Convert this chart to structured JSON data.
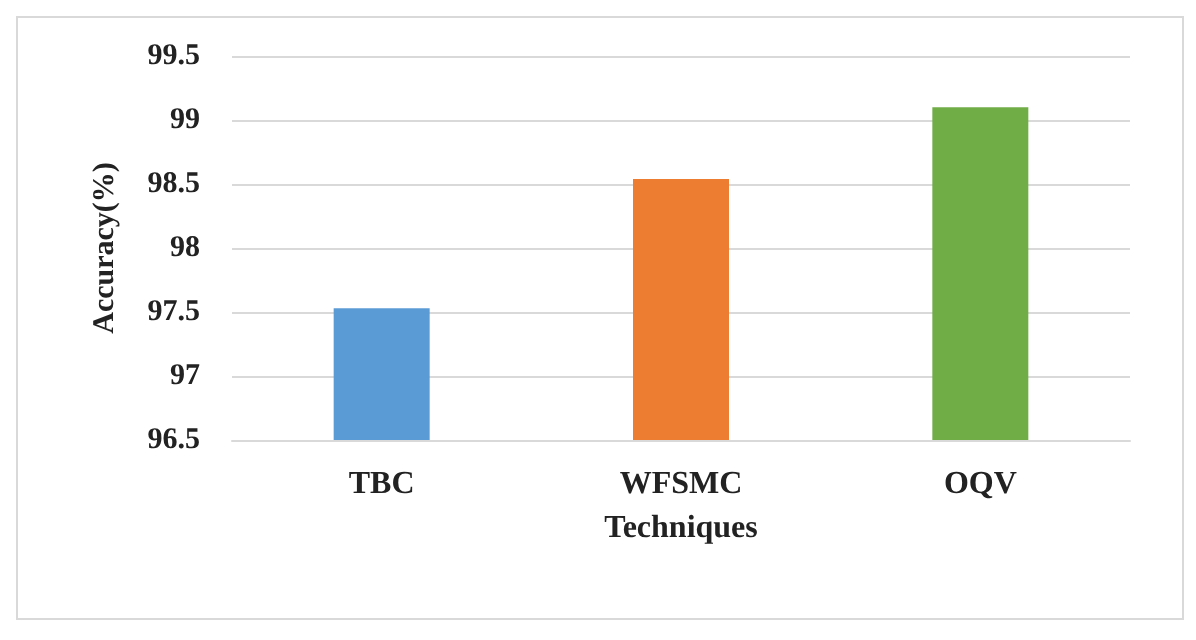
{
  "chart_data": {
    "type": "bar",
    "xlabel": "Techniques",
    "ylabel": "Accuracy(%)",
    "categories": [
      "TBC",
      "WFSMC",
      "OQV"
    ],
    "values": [
      97.53,
      98.54,
      99.1
    ],
    "colors": [
      "#5b9bd5",
      "#ed7d31",
      "#70ad47"
    ],
    "ylim": [
      96.5,
      99.5
    ],
    "yticks": [
      96.5,
      97,
      97.5,
      98,
      98.5,
      99,
      99.5
    ],
    "grid": "y"
  }
}
